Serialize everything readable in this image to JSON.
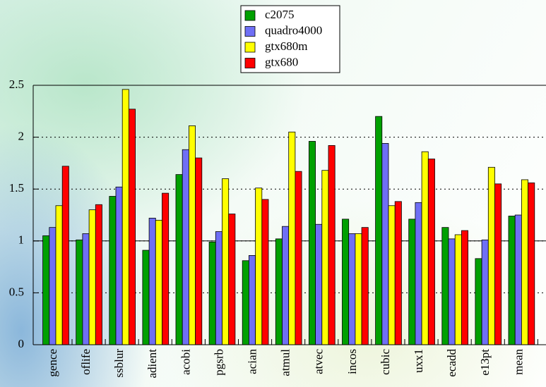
{
  "chart_data": {
    "type": "bar",
    "categories": [
      "gence",
      "oflife",
      "ssblur",
      "adient",
      "acobi",
      "pgsrb",
      "acian",
      "atmul",
      "atvec",
      "incos",
      "cubic",
      "uxx1",
      "ecadd",
      "e13pt",
      "mean"
    ],
    "series": [
      {
        "name": "c2075",
        "color": "#00a000",
        "values": [
          1.05,
          1.01,
          1.43,
          0.91,
          1.64,
          0.99,
          0.81,
          1.02,
          1.96,
          1.21,
          2.2,
          1.21,
          1.13,
          0.83,
          1.24
        ]
      },
      {
        "name": "quadro4000",
        "color": "#6f6ff5",
        "values": [
          1.13,
          1.07,
          1.52,
          1.22,
          1.88,
          1.09,
          0.86,
          1.14,
          1.16,
          1.07,
          1.94,
          1.37,
          1.02,
          1.01,
          1.25
        ]
      },
      {
        "name": "gtx680m",
        "color": "#ffff00",
        "values": [
          1.34,
          1.3,
          2.46,
          1.2,
          2.11,
          1.6,
          1.51,
          2.05,
          1.68,
          1.07,
          1.34,
          1.86,
          1.06,
          1.71,
          1.59
        ]
      },
      {
        "name": "gtx680",
        "color": "#ff0000",
        "values": [
          1.72,
          1.35,
          2.27,
          1.46,
          1.8,
          1.26,
          1.4,
          1.67,
          1.92,
          1.13,
          1.38,
          1.79,
          1.1,
          1.55,
          1.56
        ]
      }
    ],
    "ylim": [
      0,
      2.5
    ],
    "yticks": [
      0,
      0.5,
      1,
      1.5,
      2,
      2.5
    ],
    "grid": true,
    "reference_line": 1,
    "legend": "top"
  }
}
